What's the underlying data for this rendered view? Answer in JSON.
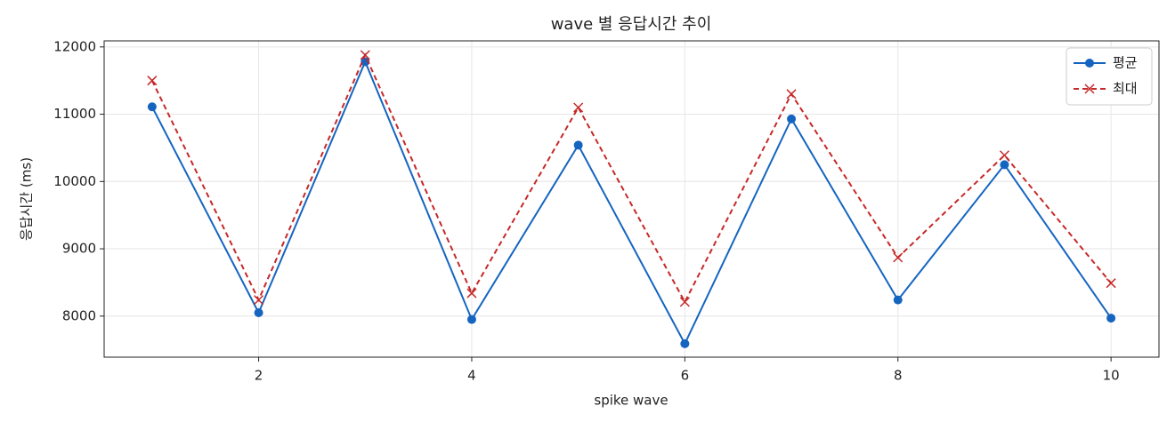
{
  "chart_data": {
    "type": "line",
    "title": "wave 별 응답시간 추이",
    "xlabel": "spike wave",
    "ylabel": "응답시간 (ms)",
    "x": [
      1,
      2,
      3,
      4,
      5,
      6,
      7,
      8,
      9,
      10
    ],
    "series": [
      {
        "name": "평균",
        "color": "#1565c0",
        "marker": "o",
        "dashed": false,
        "values": [
          11110,
          8050,
          11780,
          7950,
          10540,
          7590,
          10930,
          8240,
          10250,
          7970
        ]
      },
      {
        "name": "최대",
        "color": "#c62828",
        "marker": "x",
        "dashed": true,
        "values": [
          11500,
          8240,
          11880,
          8340,
          11100,
          8210,
          11300,
          8870,
          10390,
          8490
        ]
      }
    ],
    "xlim": [
      0.55,
      10.45
    ],
    "xticks": [
      2,
      4,
      6,
      8,
      10
    ],
    "ylim": [
      7390,
      12090
    ],
    "yticks": [
      8000,
      9000,
      10000,
      11000,
      12000
    ],
    "grid": true,
    "legend": "upper right"
  }
}
